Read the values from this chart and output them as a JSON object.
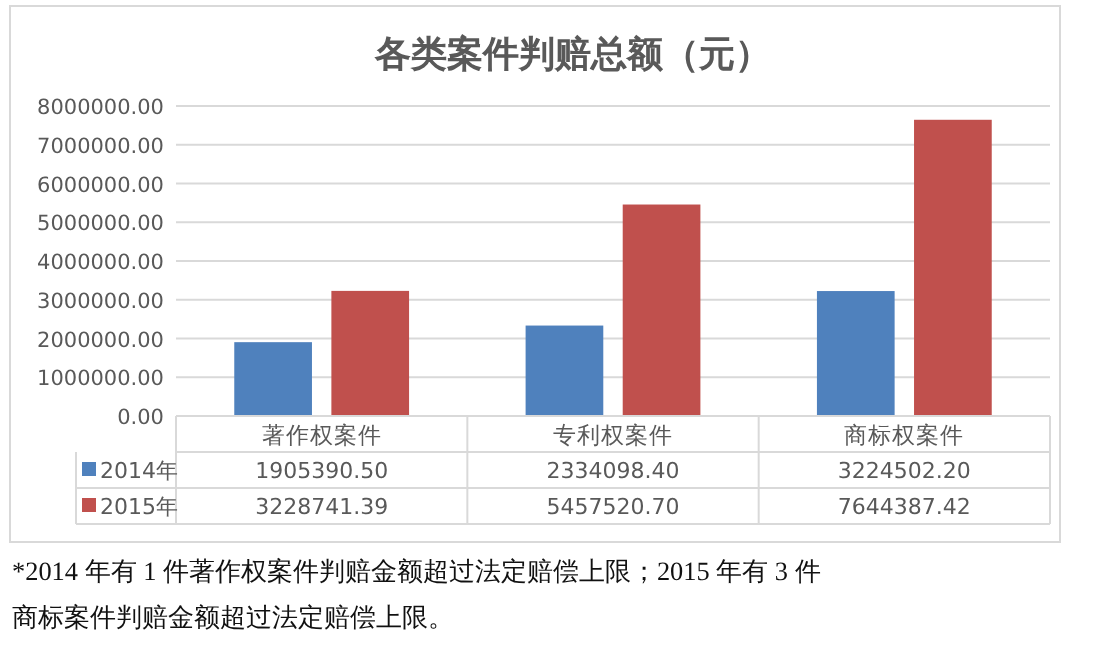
{
  "chart_data": {
    "type": "bar",
    "title": "各类案件判赔总额（元）",
    "categories": [
      "著作权案件",
      "专利权案件",
      "商标权案件"
    ],
    "series": [
      {
        "name": "2014年",
        "color": "#4f81bd",
        "values": [
          1905390.5,
          2334098.4,
          3224502.2
        ],
        "value_labels": [
          "1905390.50",
          "2334098.40",
          "3224502.20"
        ]
      },
      {
        "name": "2015年",
        "color": "#c0504d",
        "values": [
          3228741.39,
          5457520.7,
          7644387.42
        ],
        "value_labels": [
          "3228741.39",
          "5457520.70",
          "7644387.42"
        ]
      }
    ],
    "ylim": [
      0,
      8000000
    ],
    "yticks": [
      {
        "value": 0,
        "label": "0.00"
      },
      {
        "value": 1000000,
        "label": "1000000.00"
      },
      {
        "value": 2000000,
        "label": "2000000.00"
      },
      {
        "value": 3000000,
        "label": "3000000.00"
      },
      {
        "value": 4000000,
        "label": "4000000.00"
      },
      {
        "value": 5000000,
        "label": "5000000.00"
      },
      {
        "value": 6000000,
        "label": "6000000.00"
      },
      {
        "value": 7000000,
        "label": "7000000.00"
      },
      {
        "value": 8000000,
        "label": "8000000.00"
      }
    ],
    "grid": "y",
    "legend": "left",
    "annotations": [
      "*2014 年有 1 件著作权案件判赔金额超过法定赔偿上限；2015 年有 3 件商标案件判赔金额超过法定赔偿上限。"
    ]
  }
}
